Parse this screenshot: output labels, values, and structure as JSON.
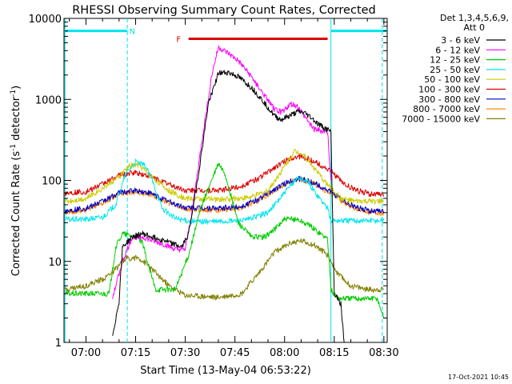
{
  "chart_data": {
    "type": "line",
    "title": "RHESSI Observing Summary Count Rates, Corrected",
    "xlabel": "Start Time (13-May-04 06:53:22)",
    "ylabel": "Corrected Count Rate (s",
    "ylabel_sup1": "-1",
    "ylabel_mid": " detector",
    "ylabel_sup2": "-1",
    "ylabel_end": ")",
    "x_scale": "time",
    "y_scale": "log",
    "xlim": [
      "06:53:22",
      "08:31:00"
    ],
    "ylim": [
      1,
      10000
    ],
    "x_ticks": [
      "07:00",
      "07:15",
      "07:30",
      "07:45",
      "08:00",
      "08:15",
      "08:30"
    ],
    "x_tick_minutes": [
      420,
      435,
      450,
      465,
      480,
      495,
      510
    ],
    "y_ticks": [
      "1",
      "10",
      "100",
      "1000",
      "10000"
    ],
    "y_tick_values": [
      1,
      10,
      100,
      1000,
      10000
    ],
    "legend_header": [
      "Det 1,3,4,5,6,9,",
      "Att 0"
    ],
    "legend_position": "right",
    "footer_timestamp": "17-Oct-2021 10:45",
    "annotations": [
      {
        "text": "N",
        "kind": "night",
        "color": "#00e5ee",
        "spans": [
          [
            "06:53:22",
            "07:12:30"
          ],
          [
            "08:14:00",
            "08:31:00"
          ]
        ],
        "level": 7000,
        "label_at": "07:14:00"
      },
      {
        "text": "F",
        "kind": "flare",
        "color": "#dd0000",
        "spans": [
          [
            "07:31:00",
            "08:13:00"
          ]
        ],
        "level": 5600,
        "label_at": "07:28:00"
      }
    ],
    "vertical_markers": [
      {
        "kind": "solid",
        "color": "#00e5ee",
        "at": "06:53:40"
      },
      {
        "kind": "dashed",
        "color": "#00e5ee",
        "at": "07:12:30"
      },
      {
        "kind": "solid",
        "color": "#00e5ee",
        "at": "08:14:00"
      },
      {
        "kind": "dashed",
        "color": "#00e5ee",
        "at": "08:29:30"
      }
    ],
    "series": [
      {
        "name": "3 - 6 keV",
        "color": "#000000",
        "x": [
          "07:08",
          "07:10",
          "07:11",
          "07:14",
          "07:17",
          "07:20",
          "07:24",
          "07:27",
          "07:29",
          "07:31",
          "07:34",
          "07:37",
          "07:40",
          "07:43",
          "07:46",
          "07:50",
          "07:54",
          "07:57",
          "07:59",
          "08:02",
          "08:04",
          "08:06",
          "08:08",
          "08:10",
          "08:13",
          "08:14",
          "08:15",
          "08:16",
          "08:17",
          "08:18"
        ],
        "values": [
          1.2,
          3.2,
          15,
          20,
          22,
          20,
          18,
          16,
          15,
          22,
          120,
          900,
          2100,
          2150,
          1900,
          1400,
          900,
          620,
          560,
          640,
          700,
          680,
          600,
          500,
          420,
          400,
          4,
          3.5,
          3,
          1
        ]
      },
      {
        "name": "6 - 12 keV",
        "color": "#ff00ff",
        "x": [
          "07:08",
          "07:11",
          "07:14",
          "07:17",
          "07:20",
          "07:24",
          "07:27",
          "07:30",
          "07:32",
          "07:35",
          "07:38",
          "07:40",
          "07:43",
          "07:46",
          "07:50",
          "07:54",
          "07:57",
          "07:59",
          "08:02",
          "08:04",
          "08:06",
          "08:09",
          "08:12",
          "08:13",
          "08:14"
        ],
        "values": [
          3.5,
          10,
          20,
          20,
          18,
          16,
          14,
          14,
          40,
          300,
          2000,
          4400,
          3700,
          3000,
          1900,
          1100,
          750,
          700,
          880,
          820,
          620,
          430,
          400,
          400,
          100
        ]
      },
      {
        "name": "12 - 25 keV",
        "color": "#00cc00",
        "x": [
          "06:53:40",
          "06:58",
          "07:03",
          "07:07",
          "07:09",
          "07:11",
          "07:15",
          "07:17",
          "07:19",
          "07:21",
          "07:24",
          "07:27",
          "07:31",
          "07:35",
          "07:38",
          "07:40",
          "07:42",
          "07:44",
          "07:46",
          "07:50",
          "07:54",
          "07:57",
          "08:00",
          "08:04",
          "08:08",
          "08:13",
          "08:14",
          "08:16",
          "08:20",
          "08:24",
          "08:28",
          "08:30"
        ],
        "values": [
          4,
          4,
          4,
          4,
          15,
          22,
          20,
          17,
          8.5,
          4.5,
          4.5,
          4.5,
          12,
          50,
          100,
          160,
          120,
          60,
          30,
          20,
          20,
          25,
          33,
          33,
          27,
          19,
          4.5,
          3.5,
          3.5,
          3.5,
          3.5,
          2
        ]
      },
      {
        "name": "25 - 50 keV",
        "color": "#00e5ee",
        "x": [
          "06:53:40",
          "07:00",
          "07:05",
          "07:09",
          "07:12",
          "07:15",
          "07:18",
          "07:20",
          "07:23",
          "07:27",
          "07:32",
          "07:40",
          "07:48",
          "07:55",
          "08:00",
          "08:04",
          "08:07",
          "08:10",
          "08:13",
          "08:14",
          "08:18",
          "08:24",
          "08:30"
        ],
        "values": [
          33,
          33,
          35,
          50,
          120,
          170,
          150,
          100,
          45,
          34,
          31,
          31,
          32,
          40,
          70,
          110,
          95,
          65,
          45,
          32,
          32,
          32,
          32
        ]
      },
      {
        "name": "50 - 100 keV",
        "color": "#cccc00",
        "x": [
          "06:53:40",
          "07:00",
          "07:05",
          "07:10",
          "07:13",
          "07:16",
          "07:20",
          "07:25",
          "07:30",
          "07:40",
          "07:50",
          "07:55",
          "08:00",
          "08:03",
          "08:05",
          "08:08",
          "08:11",
          "08:14",
          "08:17",
          "08:21",
          "08:26",
          "08:30"
        ],
        "values": [
          55,
          60,
          80,
          110,
          150,
          155,
          110,
          75,
          60,
          58,
          62,
          75,
          150,
          230,
          220,
          160,
          110,
          80,
          60,
          55,
          55,
          55
        ]
      },
      {
        "name": "100 - 300 keV",
        "color": "#dd0000",
        "x": [
          "06:53:40",
          "07:00",
          "07:05",
          "07:10",
          "07:15",
          "07:20",
          "07:25",
          "07:30",
          "07:40",
          "07:47",
          "07:52",
          "07:57",
          "08:02",
          "08:05",
          "08:09",
          "08:14",
          "08:18",
          "08:22",
          "08:26",
          "08:30"
        ],
        "values": [
          70,
          72,
          90,
          115,
          125,
          110,
          90,
          75,
          75,
          85,
          105,
          145,
          190,
          200,
          170,
          130,
          90,
          75,
          68,
          66
        ]
      },
      {
        "name": "300 - 800 keV",
        "color": "#0000cc",
        "x": [
          "06:53:40",
          "07:00",
          "07:05",
          "07:10",
          "07:15",
          "07:20",
          "07:25",
          "07:30",
          "07:40",
          "07:47",
          "07:52",
          "07:57",
          "08:02",
          "08:05",
          "08:09",
          "08:14",
          "08:18",
          "08:22",
          "08:26",
          "08:30"
        ],
        "values": [
          42,
          45,
          55,
          70,
          75,
          68,
          55,
          46,
          45,
          48,
          58,
          78,
          100,
          105,
          92,
          72,
          55,
          46,
          42,
          41
        ]
      },
      {
        "name": "800 - 7000 keV",
        "color": "#ff8800",
        "x": [
          "06:53:40",
          "07:00",
          "07:05",
          "07:10",
          "07:15",
          "07:20",
          "07:25",
          "07:30",
          "07:40",
          "07:47",
          "07:52",
          "07:57",
          "08:02",
          "08:05",
          "08:09",
          "08:14",
          "08:18",
          "08:22",
          "08:26",
          "08:30"
        ],
        "values": [
          40,
          43,
          53,
          68,
          73,
          66,
          53,
          44,
          43,
          46,
          56,
          76,
          98,
          102,
          90,
          70,
          53,
          44,
          40,
          39
        ]
      },
      {
        "name": "7000 - 15000 keV",
        "color": "#808000",
        "x": [
          "06:53:40",
          "07:00",
          "07:05",
          "07:09",
          "07:12",
          "07:16",
          "07:20",
          "07:25",
          "07:30",
          "07:40",
          "07:47",
          "07:52",
          "07:57",
          "08:02",
          "08:05",
          "08:09",
          "08:13",
          "08:16",
          "08:20",
          "08:25",
          "08:30"
        ],
        "values": [
          4.5,
          5,
          6,
          8,
          11,
          11,
          8,
          5,
          3.8,
          3.6,
          4,
          7,
          13,
          17,
          18,
          16,
          12,
          7,
          5,
          4.5,
          4.5
        ]
      }
    ]
  }
}
